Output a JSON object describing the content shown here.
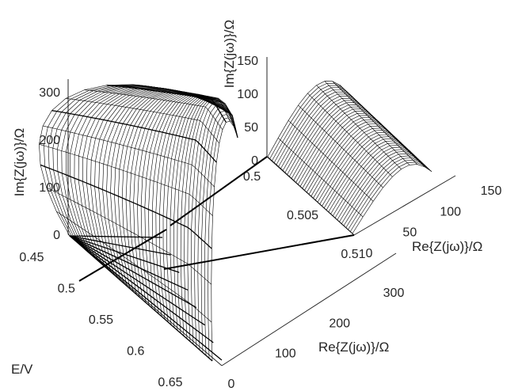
{
  "chart_data": [
    {
      "type": "3d-surface",
      "xlabel": "Re{Z(jω)}/Ω",
      "ylabel": "E/V",
      "zlabel": "Im{Z(jω)}/Ω",
      "x_ticks": [
        "0",
        "100",
        "200",
        "300"
      ],
      "y_ticks": [
        "0.45",
        "0.5",
        "0.55",
        "0.6",
        "0.65"
      ],
      "z_ticks": [
        "0",
        "100",
        "200",
        "300"
      ],
      "xlim": [
        0,
        400
      ],
      "ylim": [
        0.45,
        0.65
      ],
      "zlim": [
        0,
        320
      ]
    },
    {
      "type": "3d-surface",
      "xlabel": "Re{Z(jω)}/Ω",
      "ylabel": "",
      "zlabel": "Im{Z(jω)}/Ω",
      "x_ticks": [
        "0",
        "50",
        "100",
        "150"
      ],
      "y_ticks": [
        "0.5",
        "0.505",
        "0.51"
      ],
      "z_ticks": [
        "0",
        "50",
        "100",
        "150"
      ],
      "xlim": [
        0,
        170
      ],
      "ylim": [
        0.5,
        0.51
      ],
      "zlim": [
        0,
        150
      ]
    }
  ]
}
